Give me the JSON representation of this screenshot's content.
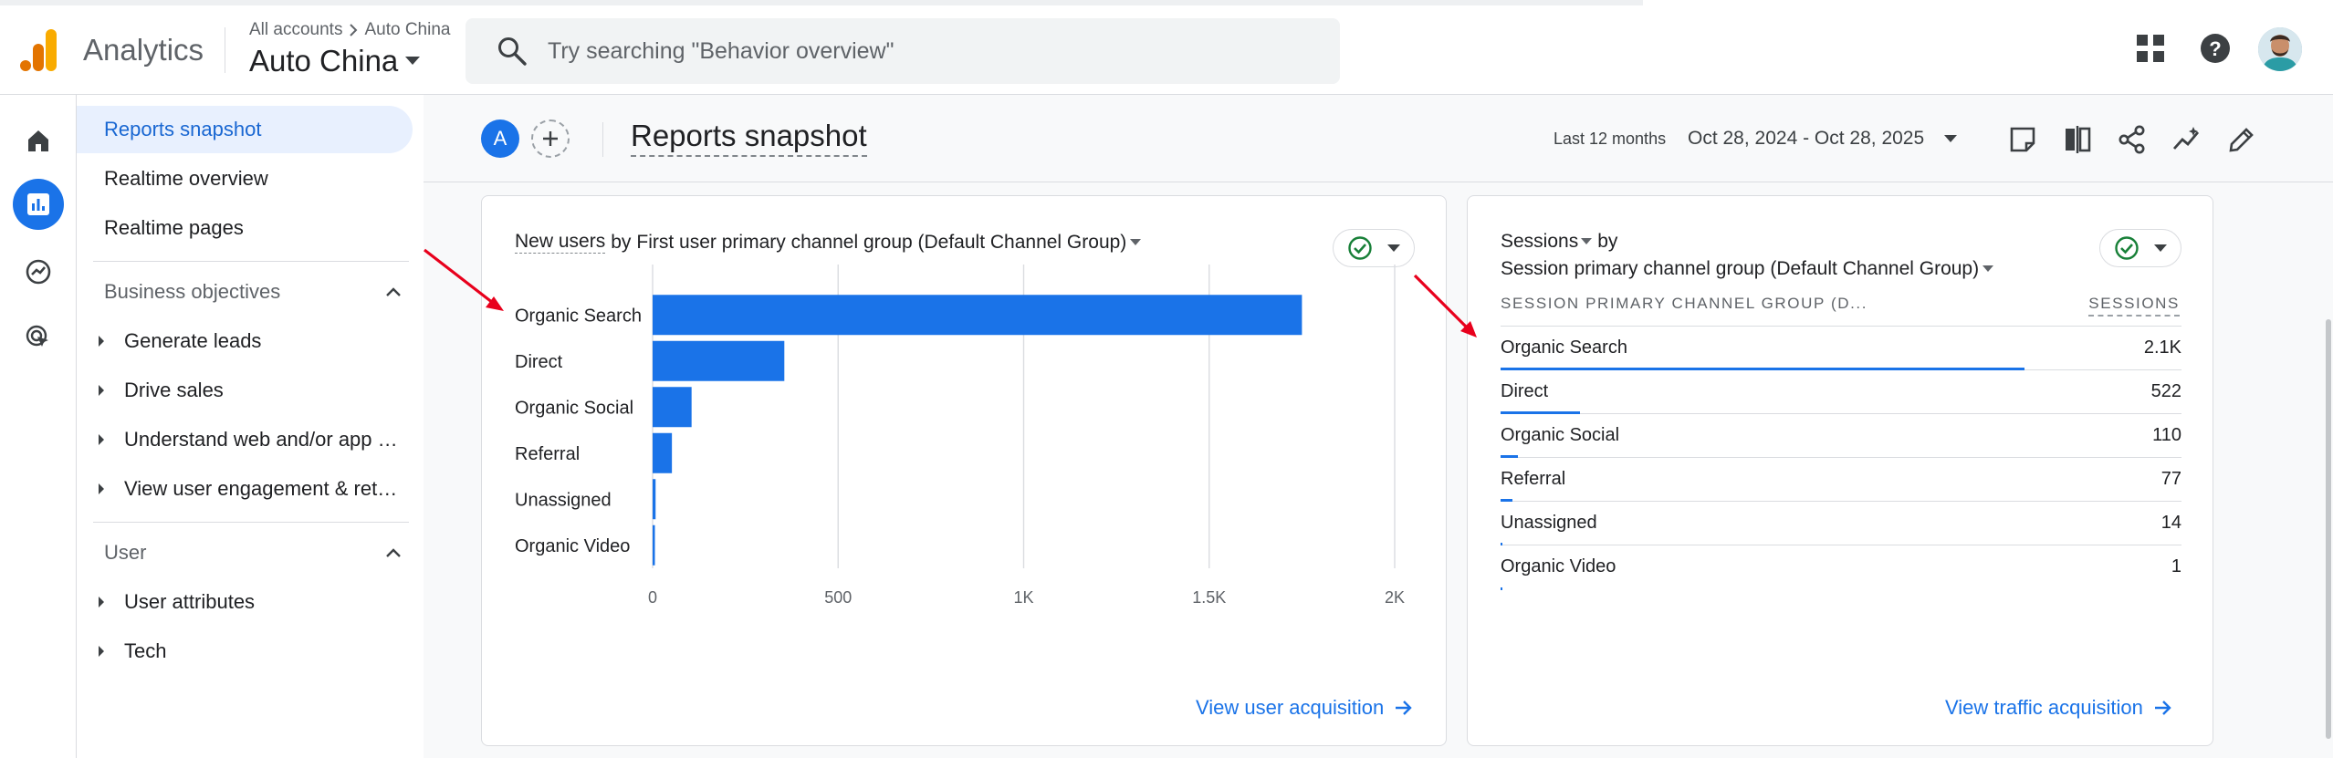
{
  "app": {
    "name": "Analytics"
  },
  "account": {
    "breadcrumb_root": "All accounts",
    "breadcrumb_child": "Auto China",
    "property": "Auto China"
  },
  "search": {
    "placeholder": "Try searching \"Behavior overview\""
  },
  "topbar_icons": [
    "apps-grid-icon",
    "help-icon",
    "user-avatar"
  ],
  "rail": {
    "items": [
      "home-icon",
      "reports-icon",
      "explore-icon",
      "advertising-icon"
    ],
    "active": "reports-icon"
  },
  "sidenav": {
    "top_items": [
      {
        "label": "Reports snapshot",
        "active": true
      },
      {
        "label": "Realtime overview"
      },
      {
        "label": "Realtime pages"
      }
    ],
    "sections": [
      {
        "title": "Business objectives",
        "items": [
          "Generate leads",
          "Drive sales",
          "Understand web and/or app t...",
          "View user engagement & rete..."
        ]
      },
      {
        "title": "User",
        "items": [
          "User attributes",
          "Tech"
        ]
      }
    ]
  },
  "header": {
    "comparison_avatar": "A",
    "title": "Reports snapshot",
    "date_label": "Last 12 months",
    "date_range": "Oct 28, 2024 - Oct 28, 2025",
    "actions": [
      "save-report-icon",
      "compare-icon",
      "share-icon",
      "insights-icon",
      "edit-icon"
    ]
  },
  "card1": {
    "title_metric": "New users",
    "title_by": "by",
    "title_dimension": "First user primary channel group (Default Channel Group)",
    "link": "View user acquisition"
  },
  "card2": {
    "title_metric": "Sessions",
    "title_by": "by",
    "title_dimension": "Session primary channel group (Default Channel Group)",
    "col_left": "SESSION PRIMARY CHANNEL GROUP (D...",
    "col_right": "SESSIONS",
    "link": "View traffic acquisition",
    "rows": [
      {
        "name": "Organic Search",
        "value": "2.1K",
        "fraction": 0.77
      },
      {
        "name": "Direct",
        "value": "522",
        "fraction": 0.117
      },
      {
        "name": "Organic Social",
        "value": "110",
        "fraction": 0.025
      },
      {
        "name": "Referral",
        "value": "77",
        "fraction": 0.017
      },
      {
        "name": "Unassigned",
        "value": "14",
        "fraction": 0.003
      },
      {
        "name": "Organic Video",
        "value": "1",
        "fraction": 0.0003
      }
    ]
  },
  "colors": {
    "accent": "#1a73e8",
    "bar": "#1a73e8",
    "success": "#188038",
    "annotation_arrow": "#e8001c"
  },
  "chart_data": {
    "type": "bar",
    "orientation": "horizontal",
    "categories": [
      "Organic Search",
      "Direct",
      "Organic Social",
      "Referral",
      "Unassigned",
      "Organic Video"
    ],
    "values": [
      1750,
      355,
      105,
      52,
      8,
      2
    ],
    "xlim": [
      0,
      2000
    ],
    "xticks": [
      "0",
      "500",
      "1K",
      "1.5K",
      "2K"
    ],
    "xtick_values": [
      0,
      500,
      1000,
      1500,
      2000
    ],
    "grid": "vertical"
  }
}
